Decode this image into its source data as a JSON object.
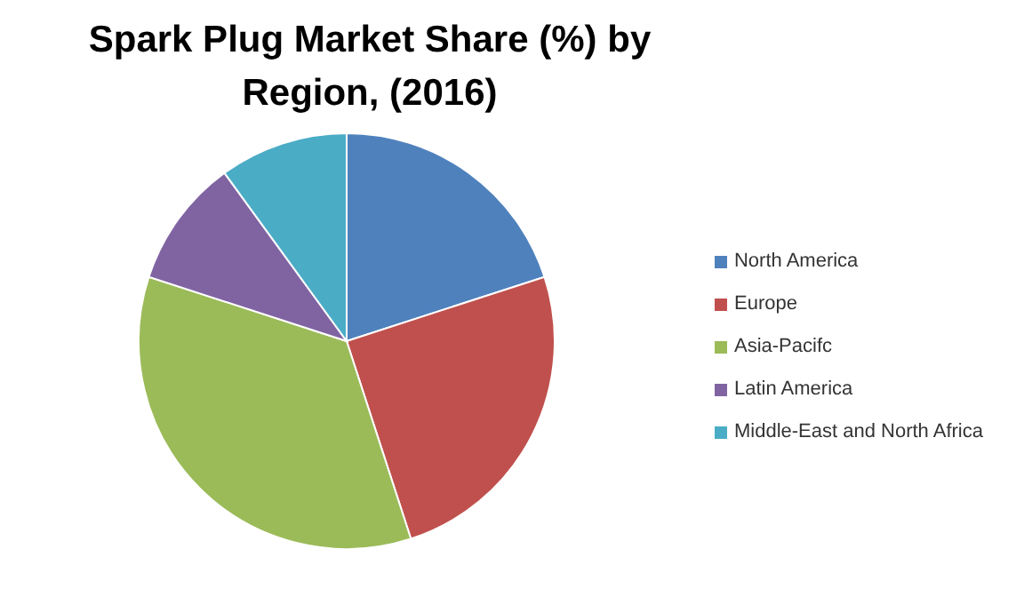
{
  "chart_data": {
    "type": "pie",
    "title": "Spark Plug Market Share (%) by Region, (2016)",
    "categories": [
      "North America",
      "Europe",
      "Asia-Pacifc",
      "Latin America",
      "Middle-East and North Africa"
    ],
    "values": [
      20,
      25,
      35,
      10,
      10
    ],
    "colors": [
      "#4f81bd",
      "#c0504d",
      "#9bbb59",
      "#8064a2",
      "#4bacc6"
    ],
    "legend": "right"
  }
}
